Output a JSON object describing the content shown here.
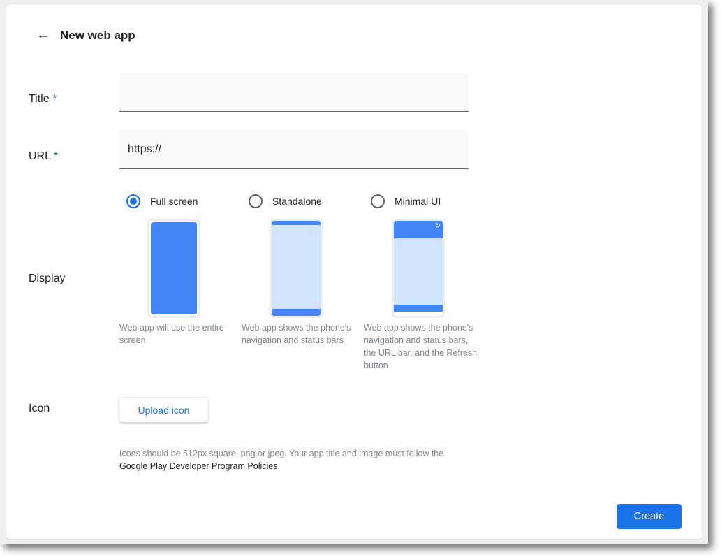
{
  "header": {
    "title": "New web app",
    "back_icon": "arrow-left-icon"
  },
  "form": {
    "title_label": "Title",
    "url_label": "URL",
    "required_mark": "*",
    "title_value": "",
    "url_value": "https://",
    "display_label": "Display",
    "display_options": [
      {
        "label": "Full screen",
        "selected": true,
        "description": "Web app will use the entire screen"
      },
      {
        "label": "Standalone",
        "selected": false,
        "description": "Web app shows the phone's navigation and status bars"
      },
      {
        "label": "Minimal UI",
        "selected": false,
        "description": "Web app shows the phone's navigation and status bars, the URL bar, and the Refresh button"
      }
    ],
    "icon_label": "Icon",
    "upload_label": "Upload icon",
    "hint": "Icons should be 512px square, png or jpeg. Your app title and image must follow the ",
    "policy_link": "Google Play Developer Program Policies",
    "hint_end": "."
  },
  "footer": {
    "create_label": "Create"
  },
  "colors": {
    "accent": "#1a73e8",
    "phone_fill": "#4285f4",
    "phone_light": "#d2e3fc"
  }
}
